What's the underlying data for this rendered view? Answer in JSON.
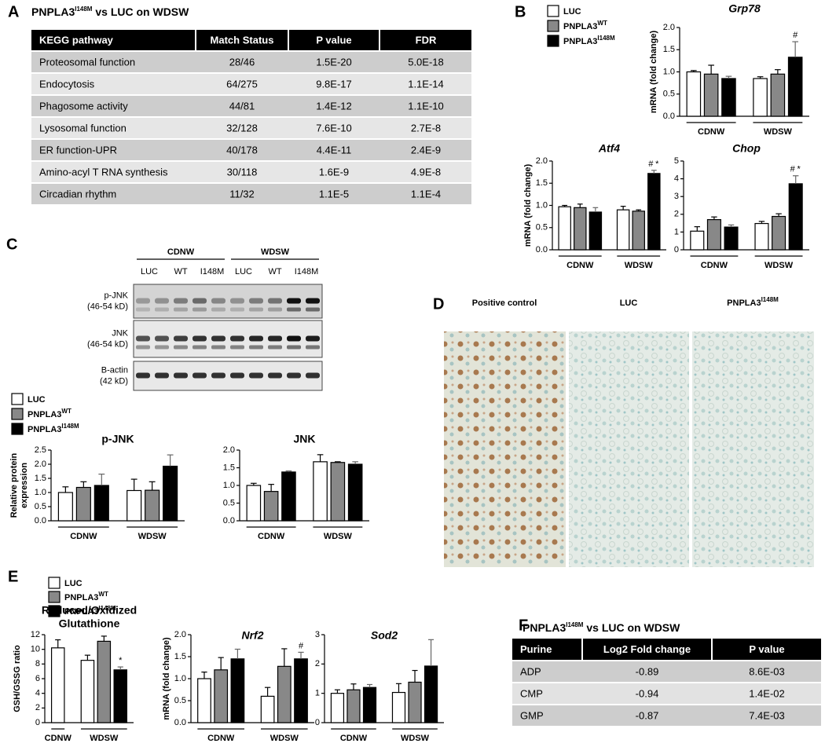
{
  "panel_A": {
    "label": "A",
    "title": {
      "text": "PNPLA3",
      "sup": "I148M",
      "rest": " vs LUC on WDSW"
    },
    "table": {
      "columns": [
        "KEGG pathway",
        "Match Status",
        "P value",
        "FDR"
      ],
      "rows": [
        [
          "Proteosomal function",
          "28/46",
          "1.5E-20",
          "5.0E-18"
        ],
        [
          "Endocytosis",
          "64/275",
          "9.8E-17",
          "1.1E-14"
        ],
        [
          "Phagosome activity",
          "44/81",
          "1.4E-12",
          "1.1E-10"
        ],
        [
          "Lysosomal function",
          "32/128",
          "7.6E-10",
          "2.7E-8"
        ],
        [
          "ER function-UPR",
          "40/178",
          "4.4E-11",
          "2.4E-9"
        ],
        [
          "Amino-acyl T RNA synthesis",
          "30/118",
          "1.6E-9",
          "4.9E-8"
        ],
        [
          "Circadian rhythm",
          "11/32",
          "1.1E-5",
          "1.1E-4"
        ]
      ]
    }
  },
  "panel_B": {
    "label": "B",
    "legend": [
      {
        "text": "LUC",
        "color": "#ffffff"
      },
      {
        "text": "PNPLA3",
        "sup": "WT",
        "color": "#888888"
      },
      {
        "text": "PNPLA3",
        "sup": "I148M",
        "color": "#000000"
      }
    ]
  },
  "panel_C": {
    "label": "C",
    "blot": {
      "groups": [
        "CDNW",
        "WDSW"
      ],
      "lanes": [
        "LUC",
        "WT",
        "I148M",
        "LUC",
        "WT",
        "I148M"
      ],
      "rows": [
        [
          "p-JNK",
          "(46-54 kD)"
        ],
        [
          "JNK",
          "(46-54 kD)"
        ],
        [
          "B-actin",
          "(42 kD)"
        ]
      ]
    },
    "legend": [
      {
        "text": "LUC",
        "color": "#ffffff"
      },
      {
        "text": "PNPLA3",
        "sup": "WT",
        "color": "#888888"
      },
      {
        "text": "PNPLA3",
        "sup": "I148M",
        "color": "#000000"
      }
    ]
  },
  "panel_D": {
    "label": "D",
    "columns": [
      {
        "text": "Positive control"
      },
      {
        "text": "LUC"
      },
      {
        "text": "PNPLA3",
        "sup": "I148M"
      }
    ]
  },
  "panel_E": {
    "label": "E",
    "legend": [
      {
        "text": "LUC",
        "color": "#ffffff"
      },
      {
        "text": "PNPLA3",
        "sup": "WT",
        "color": "#888888"
      },
      {
        "text": "PNPLA3",
        "sup": "I148M",
        "color": "#000000"
      }
    ]
  },
  "panel_F": {
    "label": "F",
    "title": {
      "text": "PNPLA3",
      "sup": "I148M",
      "rest": " vs LUC on WDSW"
    },
    "table": {
      "columns": [
        "Purine",
        "Log2 Fold change",
        "P value"
      ],
      "rows": [
        [
          "ADP",
          "-0.89",
          "8.6E-03"
        ],
        [
          "CMP",
          "-0.94",
          "1.4E-02"
        ],
        [
          "GMP",
          "-0.87",
          "7.4E-03"
        ]
      ]
    }
  },
  "chart_data": [
    {
      "type": "bar",
      "title": "Grp78",
      "title_italic": true,
      "ylabel": "mRNA (fold change)",
      "groups": [
        "CDNW",
        "WDSW"
      ],
      "ylim": [
        0,
        2
      ],
      "yticks": [
        {
          "value": 0,
          "label": "0.0"
        },
        {
          "value": 0.5,
          "label": "0.5"
        },
        {
          "value": 1,
          "label": "1.0"
        },
        {
          "value": 1.5,
          "label": "1.5"
        },
        {
          "value": 2,
          "label": "2.0"
        }
      ],
      "series": [
        {
          "color": "#ffffff",
          "values": [
            1.0,
            0.85
          ],
          "errors": [
            0.03,
            0.04
          ]
        },
        {
          "color": "#888888",
          "values": [
            0.95,
            0.95
          ],
          "errors": [
            0.2,
            0.1
          ]
        },
        {
          "color": "#000000",
          "values": [
            0.85,
            1.33
          ],
          "errors": [
            0.05,
            0.35
          ],
          "annotations": [
            null,
            [
              {
                "text": "#",
                "color": "#999999"
              }
            ]
          ]
        }
      ]
    },
    {
      "type": "bar",
      "title": "Atf4",
      "title_italic": true,
      "ylabel": "mRNA (fold change)",
      "groups": [
        "CDNW",
        "WDSW"
      ],
      "ylim": [
        0,
        2
      ],
      "yticks": [
        {
          "value": 0,
          "label": "0.0"
        },
        {
          "value": 0.5,
          "label": "0.5"
        },
        {
          "value": 1,
          "label": "1.0"
        },
        {
          "value": 1.5,
          "label": "1.5"
        },
        {
          "value": 2,
          "label": "2.0"
        }
      ],
      "series": [
        {
          "color": "#ffffff",
          "values": [
            0.97,
            0.9
          ],
          "errors": [
            0.03,
            0.08
          ]
        },
        {
          "color": "#888888",
          "values": [
            0.95,
            0.87
          ],
          "errors": [
            0.08,
            0.03
          ]
        },
        {
          "color": "#000000",
          "values": [
            0.85,
            1.72
          ],
          "errors": [
            0.1,
            0.07
          ],
          "annotations": [
            null,
            [
              {
                "text": "#",
                "color": "#999999"
              },
              {
                "text": "*",
                "color": "#000000"
              }
            ]
          ]
        }
      ]
    },
    {
      "type": "bar",
      "title": "Chop",
      "title_italic": true,
      "groups": [
        "CDNW",
        "WDSW"
      ],
      "ylim": [
        0,
        5
      ],
      "yticks": [
        0,
        1,
        2,
        3,
        4,
        5
      ],
      "series": [
        {
          "color": "#ffffff",
          "values": [
            1.05,
            1.48
          ],
          "errors": [
            0.25,
            0.12
          ]
        },
        {
          "color": "#888888",
          "values": [
            1.7,
            1.88
          ],
          "errors": [
            0.15,
            0.15
          ]
        },
        {
          "color": "#000000",
          "values": [
            1.28,
            3.72
          ],
          "errors": [
            0.12,
            0.45
          ],
          "annotations": [
            null,
            [
              {
                "text": "#",
                "color": "#999999"
              },
              {
                "text": "*",
                "color": "#000000"
              }
            ]
          ]
        }
      ]
    },
    {
      "type": "bar",
      "title": "p-JNK",
      "ylabel": [
        "Relative protein",
        "expression"
      ],
      "groups": [
        "CDNW",
        "WDSW"
      ],
      "ylim": [
        0,
        2.5
      ],
      "yticks": [
        {
          "value": 0,
          "label": "0.0"
        },
        {
          "value": 0.5,
          "label": "0.5"
        },
        {
          "value": 1,
          "label": "1.0"
        },
        {
          "value": 1.5,
          "label": "1.5"
        },
        {
          "value": 2,
          "label": "2.0"
        },
        {
          "value": 2.5,
          "label": "2.5"
        }
      ],
      "series": [
        {
          "color": "#ffffff",
          "values": [
            1.0,
            1.07
          ],
          "errors": [
            0.2,
            0.4
          ]
        },
        {
          "color": "#888888",
          "values": [
            1.18,
            1.08
          ],
          "errors": [
            0.2,
            0.3
          ]
        },
        {
          "color": "#000000",
          "values": [
            1.25,
            1.93
          ],
          "errors": [
            0.4,
            0.4
          ]
        }
      ]
    },
    {
      "type": "bar",
      "title": "JNK",
      "groups": [
        "CDNW",
        "WDSW"
      ],
      "ylim": [
        0,
        2
      ],
      "yticks": [
        {
          "value": 0,
          "label": "0.0"
        },
        {
          "value": 0.5,
          "label": "0.5"
        },
        {
          "value": 1,
          "label": "1.0"
        },
        {
          "value": 1.5,
          "label": "1.5"
        },
        {
          "value": 2,
          "label": "2.0"
        }
      ],
      "series": [
        {
          "color": "#ffffff",
          "values": [
            1.0,
            1.67
          ],
          "errors": [
            0.06,
            0.2
          ]
        },
        {
          "color": "#888888",
          "values": [
            0.83,
            1.65
          ],
          "errors": [
            0.2,
            0.02
          ]
        },
        {
          "color": "#000000",
          "values": [
            1.38,
            1.6
          ],
          "errors": [
            0.03,
            0.07
          ]
        }
      ]
    },
    {
      "type": "bar",
      "title": [
        "Reduced/Oxidized",
        "Glutathione"
      ],
      "ylabel": "GSH/GSSG ratio",
      "groups": [
        "CDNW",
        "WDSW"
      ],
      "ylim": [
        0,
        12
      ],
      "yticks": [
        0,
        2,
        4,
        6,
        8,
        10,
        12
      ],
      "series": [
        {
          "color": "#ffffff",
          "values": [
            10.2,
            8.5
          ],
          "errors": [
            1.1,
            0.7
          ]
        },
        {
          "color": "#888888",
          "values": [
            null,
            11.1
          ],
          "errors": [
            null,
            0.7
          ]
        },
        {
          "color": "#000000",
          "values": [
            null,
            7.2
          ],
          "errors": [
            null,
            0.4
          ],
          "annotations": [
            null,
            [
              {
                "text": "*",
                "color": "#000000"
              }
            ]
          ]
        }
      ]
    },
    {
      "type": "bar",
      "title": "Nrf2",
      "title_italic": true,
      "ylabel": "mRNA (fold change)",
      "groups": [
        "CDNW",
        "WDSW"
      ],
      "ylim": [
        0,
        2
      ],
      "yticks": [
        {
          "value": 0,
          "label": "0.0"
        },
        {
          "value": 0.5,
          "label": "0.5"
        },
        {
          "value": 1,
          "label": "1.0"
        },
        {
          "value": 1.5,
          "label": "1.5"
        },
        {
          "value": 2,
          "label": "2.0"
        }
      ],
      "series": [
        {
          "color": "#ffffff",
          "values": [
            1.0,
            0.6
          ],
          "errors": [
            0.15,
            0.2
          ]
        },
        {
          "color": "#888888",
          "values": [
            1.2,
            1.28
          ],
          "errors": [
            0.28,
            0.4
          ]
        },
        {
          "color": "#000000",
          "values": [
            1.45,
            1.45
          ],
          "errors": [
            0.22,
            0.15
          ],
          "annotations": [
            null,
            [
              {
                "text": "#",
                "color": "#999999"
              }
            ]
          ]
        }
      ]
    },
    {
      "type": "bar",
      "title": "Sod2",
      "title_italic": true,
      "groups": [
        "CDNW",
        "WDSW"
      ],
      "ylim": [
        0,
        3
      ],
      "yticks": [
        0,
        1,
        2,
        3
      ],
      "series": [
        {
          "color": "#ffffff",
          "values": [
            1.0,
            1.03
          ],
          "errors": [
            0.12,
            0.3
          ]
        },
        {
          "color": "#888888",
          "values": [
            1.12,
            1.38
          ],
          "errors": [
            0.2,
            0.4
          ]
        },
        {
          "color": "#000000",
          "values": [
            1.2,
            1.93
          ],
          "errors": [
            0.1,
            0.9
          ]
        }
      ]
    }
  ]
}
